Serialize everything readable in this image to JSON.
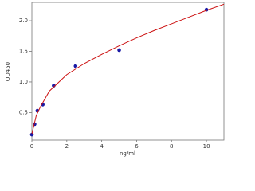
{
  "chart_data": {
    "type": "scatter",
    "xlabel": "ng/ml",
    "ylabel": "OD450",
    "xlim": [
      0,
      11
    ],
    "ylim": [
      0.05,
      2.3
    ],
    "xticks": [
      0,
      2,
      4,
      6,
      8,
      10
    ],
    "yticks": [
      0.5,
      {
        "value": 1,
        "label": "1.0"
      },
      1.5,
      {
        "value": 2,
        "label": "2.0"
      }
    ],
    "series": [
      {
        "mode": "points",
        "color": "#1a1aa6",
        "x": [
          0,
          0.156,
          0.312,
          0.625,
          1.25,
          2.5,
          5,
          10
        ],
        "values": [
          0.14,
          0.31,
          0.53,
          0.63,
          0.94,
          1.26,
          1.52,
          2.18
        ]
      },
      {
        "mode": "line",
        "color": "#cc1111",
        "x": [
          0,
          0.25,
          0.5,
          1,
          2,
          3,
          4,
          5,
          6,
          7,
          8,
          9,
          10,
          11
        ],
        "values": [
          0.15,
          0.45,
          0.6,
          0.85,
          1.12,
          1.3,
          1.45,
          1.59,
          1.72,
          1.84,
          1.95,
          2.06,
          2.17,
          2.27
        ]
      }
    ]
  }
}
